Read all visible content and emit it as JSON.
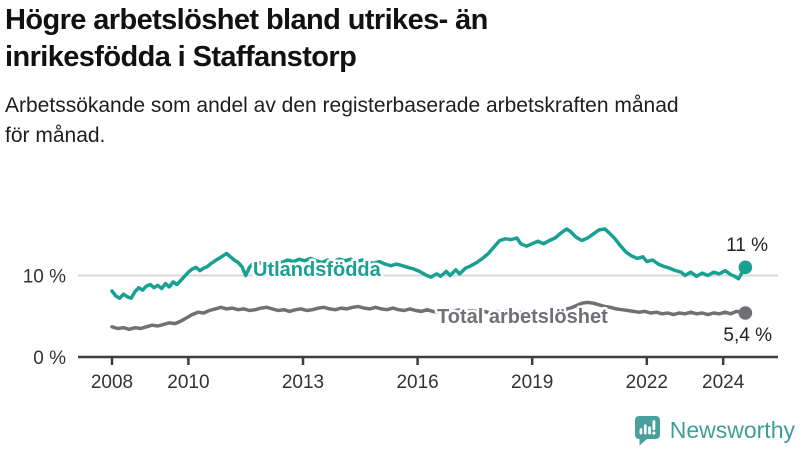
{
  "header": {
    "title_lines": [
      "Högre arbetslöshet bland utrikes- än",
      "inrikesfödda i Staffanstorp"
    ],
    "subtitle_lines": [
      "Arbetssökande som andel av den registerbaserade arbetskraften månad",
      "för månad."
    ]
  },
  "footer": {
    "brand": "Newsworthy",
    "brand_color": "#3f9e9a",
    "logo_icon": "bar-chart-speech-bubble"
  },
  "chart_data": {
    "type": "line",
    "title": "Högre arbetslöshet bland utrikes- än inrikesfödda i Staffanstorp",
    "subtitle": "Arbetssökande som andel av den registerbaserade arbetskraften månad för månad.",
    "xlabel": "",
    "ylabel": "",
    "x_axis": {
      "range": [
        2007.1,
        2025.4
      ],
      "ticks": [
        2008,
        2010,
        2013,
        2016,
        2019,
        2022,
        2024
      ],
      "tick_labels": [
        "2008",
        "2010",
        "2013",
        "2016",
        "2019",
        "2022",
        "2024"
      ]
    },
    "y_axis": {
      "range": [
        0,
        20
      ],
      "ticks": [
        0,
        10
      ],
      "tick_labels": [
        "0 %",
        "10 %"
      ],
      "gridlines_at": [
        10
      ]
    },
    "legend_position": "inline-labels-on-lines",
    "grid": "single horizontal gridline at 10%",
    "series": [
      {
        "name": "Utlandsfödda",
        "color": "#18a193",
        "end_value_label": "11 %",
        "points": [
          [
            2008.0,
            8.1
          ],
          [
            2008.1,
            7.5
          ],
          [
            2008.2,
            7.2
          ],
          [
            2008.3,
            7.7
          ],
          [
            2008.4,
            7.4
          ],
          [
            2008.5,
            7.2
          ],
          [
            2008.6,
            8.0
          ],
          [
            2008.7,
            8.5
          ],
          [
            2008.8,
            8.2
          ],
          [
            2008.9,
            8.7
          ],
          [
            2009.0,
            8.9
          ],
          [
            2009.1,
            8.5
          ],
          [
            2009.2,
            8.8
          ],
          [
            2009.3,
            8.4
          ],
          [
            2009.4,
            9.0
          ],
          [
            2009.5,
            8.6
          ],
          [
            2009.6,
            9.2
          ],
          [
            2009.7,
            8.9
          ],
          [
            2009.8,
            9.4
          ],
          [
            2009.9,
            9.9
          ],
          [
            2010.0,
            10.4
          ],
          [
            2010.1,
            10.8
          ],
          [
            2010.2,
            11.0
          ],
          [
            2010.3,
            10.6
          ],
          [
            2010.4,
            10.9
          ],
          [
            2010.5,
            11.1
          ],
          [
            2010.6,
            11.5
          ],
          [
            2010.7,
            11.8
          ],
          [
            2010.8,
            12.1
          ],
          [
            2010.9,
            12.4
          ],
          [
            2011.0,
            12.7
          ],
          [
            2011.1,
            12.3
          ],
          [
            2011.2,
            11.9
          ],
          [
            2011.3,
            11.6
          ],
          [
            2011.4,
            11.1
          ],
          [
            2011.5,
            10.0
          ],
          [
            2011.6,
            11.0
          ],
          [
            2011.7,
            11.5
          ],
          [
            2011.8,
            11.7
          ],
          [
            2011.9,
            11.5
          ],
          [
            2012.0,
            11.7
          ],
          [
            2012.15,
            11.5
          ],
          [
            2012.3,
            11.8
          ],
          [
            2012.45,
            11.6
          ],
          [
            2012.6,
            11.9
          ],
          [
            2012.75,
            11.7
          ],
          [
            2012.9,
            12.0
          ],
          [
            2013.05,
            11.8
          ],
          [
            2013.2,
            12.1
          ],
          [
            2013.35,
            11.8
          ],
          [
            2013.5,
            11.6
          ],
          [
            2013.65,
            11.9
          ],
          [
            2013.8,
            11.7
          ],
          [
            2013.95,
            12.0
          ],
          [
            2014.1,
            11.8
          ],
          [
            2014.25,
            12.0
          ],
          [
            2014.4,
            11.7
          ],
          [
            2014.55,
            11.9
          ],
          [
            2014.7,
            11.6
          ],
          [
            2014.85,
            11.5
          ],
          [
            2015.0,
            11.7
          ],
          [
            2015.15,
            11.4
          ],
          [
            2015.3,
            11.2
          ],
          [
            2015.45,
            11.4
          ],
          [
            2015.6,
            11.2
          ],
          [
            2015.75,
            11.0
          ],
          [
            2015.9,
            10.8
          ],
          [
            2016.05,
            10.5
          ],
          [
            2016.2,
            10.1
          ],
          [
            2016.35,
            9.8
          ],
          [
            2016.5,
            10.2
          ],
          [
            2016.6,
            9.9
          ],
          [
            2016.75,
            10.5
          ],
          [
            2016.85,
            10.0
          ],
          [
            2017.0,
            10.7
          ],
          [
            2017.1,
            10.2
          ],
          [
            2017.25,
            10.9
          ],
          [
            2017.4,
            11.2
          ],
          [
            2017.55,
            11.6
          ],
          [
            2017.7,
            12.1
          ],
          [
            2017.85,
            12.7
          ],
          [
            2018.0,
            13.5
          ],
          [
            2018.15,
            14.3
          ],
          [
            2018.3,
            14.5
          ],
          [
            2018.45,
            14.4
          ],
          [
            2018.6,
            14.6
          ],
          [
            2018.7,
            13.9
          ],
          [
            2018.85,
            13.6
          ],
          [
            2019.0,
            13.9
          ],
          [
            2019.15,
            14.2
          ],
          [
            2019.3,
            13.9
          ],
          [
            2019.45,
            14.3
          ],
          [
            2019.6,
            14.6
          ],
          [
            2019.75,
            15.2
          ],
          [
            2019.9,
            15.7
          ],
          [
            2020.0,
            15.4
          ],
          [
            2020.15,
            14.7
          ],
          [
            2020.3,
            14.3
          ],
          [
            2020.45,
            14.6
          ],
          [
            2020.6,
            15.1
          ],
          [
            2020.75,
            15.6
          ],
          [
            2020.9,
            15.7
          ],
          [
            2021.0,
            15.3
          ],
          [
            2021.15,
            14.6
          ],
          [
            2021.3,
            13.7
          ],
          [
            2021.45,
            12.9
          ],
          [
            2021.6,
            12.4
          ],
          [
            2021.75,
            12.1
          ],
          [
            2021.9,
            12.3
          ],
          [
            2022.0,
            11.7
          ],
          [
            2022.15,
            11.9
          ],
          [
            2022.3,
            11.4
          ],
          [
            2022.45,
            11.1
          ],
          [
            2022.6,
            10.9
          ],
          [
            2022.75,
            10.6
          ],
          [
            2022.9,
            10.4
          ],
          [
            2023.0,
            10.0
          ],
          [
            2023.15,
            10.4
          ],
          [
            2023.3,
            9.9
          ],
          [
            2023.45,
            10.3
          ],
          [
            2023.6,
            10.0
          ],
          [
            2023.75,
            10.4
          ],
          [
            2023.9,
            10.2
          ],
          [
            2024.05,
            10.6
          ],
          [
            2024.2,
            10.1
          ],
          [
            2024.3,
            9.9
          ],
          [
            2024.4,
            9.6
          ],
          [
            2024.5,
            10.4
          ],
          [
            2024.58,
            11.0
          ]
        ]
      },
      {
        "name": "Total arbetslöshet",
        "color": "#717175",
        "end_value_label": "5,4 %",
        "points": [
          [
            2008.0,
            3.7
          ],
          [
            2008.15,
            3.5
          ],
          [
            2008.3,
            3.6
          ],
          [
            2008.45,
            3.4
          ],
          [
            2008.6,
            3.6
          ],
          [
            2008.75,
            3.5
          ],
          [
            2008.9,
            3.7
          ],
          [
            2009.05,
            3.9
          ],
          [
            2009.2,
            3.8
          ],
          [
            2009.35,
            4.0
          ],
          [
            2009.5,
            4.2
          ],
          [
            2009.65,
            4.1
          ],
          [
            2009.8,
            4.4
          ],
          [
            2009.95,
            4.8
          ],
          [
            2010.1,
            5.2
          ],
          [
            2010.25,
            5.5
          ],
          [
            2010.4,
            5.4
          ],
          [
            2010.55,
            5.7
          ],
          [
            2010.7,
            5.9
          ],
          [
            2010.85,
            6.1
          ],
          [
            2011.0,
            5.9
          ],
          [
            2011.15,
            6.0
          ],
          [
            2011.3,
            5.8
          ],
          [
            2011.45,
            5.9
          ],
          [
            2011.6,
            5.7
          ],
          [
            2011.75,
            5.8
          ],
          [
            2011.9,
            6.0
          ],
          [
            2012.05,
            6.1
          ],
          [
            2012.2,
            5.9
          ],
          [
            2012.35,
            5.7
          ],
          [
            2012.5,
            5.8
          ],
          [
            2012.65,
            5.6
          ],
          [
            2012.8,
            5.8
          ],
          [
            2012.95,
            5.9
          ],
          [
            2013.1,
            5.7
          ],
          [
            2013.25,
            5.8
          ],
          [
            2013.4,
            6.0
          ],
          [
            2013.55,
            6.1
          ],
          [
            2013.7,
            5.9
          ],
          [
            2013.85,
            5.8
          ],
          [
            2014.0,
            6.0
          ],
          [
            2014.15,
            5.9
          ],
          [
            2014.3,
            6.1
          ],
          [
            2014.45,
            6.2
          ],
          [
            2014.6,
            6.0
          ],
          [
            2014.75,
            5.9
          ],
          [
            2014.9,
            6.1
          ],
          [
            2015.05,
            5.9
          ],
          [
            2015.2,
            5.8
          ],
          [
            2015.35,
            6.0
          ],
          [
            2015.5,
            5.8
          ],
          [
            2015.65,
            5.7
          ],
          [
            2015.8,
            5.9
          ],
          [
            2015.95,
            5.7
          ],
          [
            2016.1,
            5.6
          ],
          [
            2016.25,
            5.8
          ],
          [
            2016.4,
            5.6
          ],
          [
            2016.55,
            5.5
          ],
          [
            2016.7,
            5.7
          ],
          [
            2016.85,
            5.5
          ],
          [
            2017.0,
            5.7
          ],
          [
            2017.15,
            5.8
          ],
          [
            2017.3,
            5.6
          ],
          [
            2017.45,
            5.7
          ],
          [
            2017.6,
            5.5
          ],
          [
            2017.75,
            5.6
          ],
          [
            2017.9,
            5.4
          ],
          [
            2018.05,
            5.6
          ],
          [
            2018.2,
            5.5
          ],
          [
            2018.35,
            5.7
          ],
          [
            2018.5,
            5.5
          ],
          [
            2018.65,
            5.4
          ],
          [
            2018.8,
            5.6
          ],
          [
            2018.95,
            5.5
          ],
          [
            2019.1,
            5.6
          ],
          [
            2019.25,
            5.4
          ],
          [
            2019.4,
            5.5
          ],
          [
            2019.55,
            5.7
          ],
          [
            2019.7,
            5.6
          ],
          [
            2019.85,
            5.8
          ],
          [
            2020.0,
            6.0
          ],
          [
            2020.15,
            6.3
          ],
          [
            2020.3,
            6.6
          ],
          [
            2020.45,
            6.7
          ],
          [
            2020.6,
            6.6
          ],
          [
            2020.75,
            6.4
          ],
          [
            2020.9,
            6.2
          ],
          [
            2021.05,
            6.1
          ],
          [
            2021.2,
            5.9
          ],
          [
            2021.35,
            5.8
          ],
          [
            2021.5,
            5.7
          ],
          [
            2021.65,
            5.6
          ],
          [
            2021.8,
            5.5
          ],
          [
            2021.95,
            5.6
          ],
          [
            2022.1,
            5.4
          ],
          [
            2022.25,
            5.5
          ],
          [
            2022.4,
            5.3
          ],
          [
            2022.55,
            5.4
          ],
          [
            2022.7,
            5.2
          ],
          [
            2022.85,
            5.4
          ],
          [
            2023.0,
            5.3
          ],
          [
            2023.15,
            5.5
          ],
          [
            2023.3,
            5.3
          ],
          [
            2023.45,
            5.4
          ],
          [
            2023.6,
            5.2
          ],
          [
            2023.75,
            5.4
          ],
          [
            2023.9,
            5.3
          ],
          [
            2024.05,
            5.5
          ],
          [
            2024.2,
            5.3
          ],
          [
            2024.35,
            5.6
          ],
          [
            2024.5,
            5.5
          ],
          [
            2024.58,
            5.4
          ]
        ]
      }
    ]
  }
}
